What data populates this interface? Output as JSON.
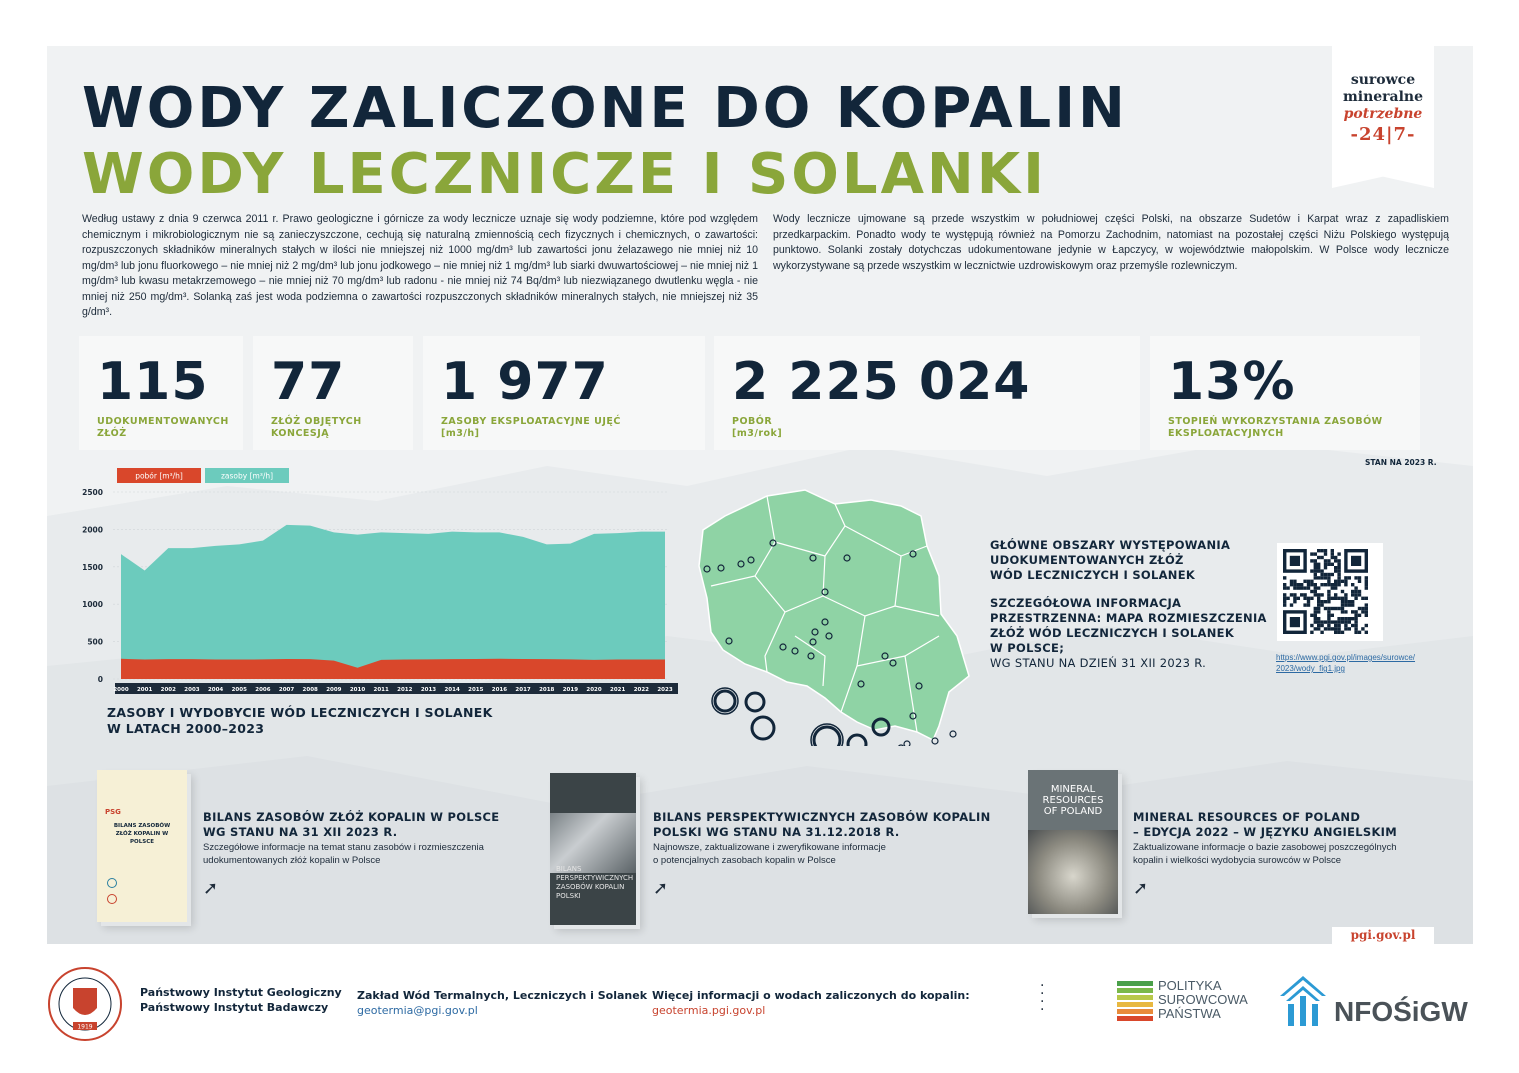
{
  "title": {
    "line1": "WODY ZALICZONE DO KOPALIN",
    "line2": "WODY LECZNICZE I SOLANKI"
  },
  "badge": {
    "line1": "surowce",
    "line2": "mineralne",
    "line3": "potrzebne",
    "line4": "-24|7-"
  },
  "intro": {
    "left": "Według ustawy z dnia 9 czerwca 2011 r. Prawo geologiczne i górnicze za wody lecznicze uznaje się wody podziemne, które pod względem chemicznym i mikrobiologicznym nie są zanieczyszczone, cechują się naturalną zmiennością cech fizycznych i chemicznych, o zawartości: rozpuszczonych składników mineralnych stałych w ilości nie mniejszej niż 1000 mg/dm³ lub zawartości jonu żelazawego nie mniej niż 10 mg/dm³ lub jonu fluorkowego – nie mniej niż 2 mg/dm³ lub jonu jodkowego – nie mniej niż 1 mg/dm³ lub siarki dwuwartościowej – nie mniej niż 1 mg/dm³ lub kwasu metakrzemowego – nie mniej niż 70 mg/dm³ lub radonu - nie mniej niż 74 Bq/dm³ lub niezwiązanego dwutlenku węgla - nie mniej niż 250 mg/dm³. Solanką zaś jest woda podziemna o zawartości rozpuszczonych składników mineralnych stałych, nie mniejszej niż 35 g/dm³.",
    "right": "Wody lecznicze ujmowane są przede wszystkim w południowej części Polski, na obszarze Sudetów i Karpat wraz z zapadliskiem przedkarpackim. Ponadto wody te występują również na Pomorzu Zachodnim, natomiast na pozostałej części Niżu Polskiego występują punktowo. Solanki zostały dotychczas udokumentowane jedynie w Łapczycy, w województwie małopolskim. W Polsce wody lecznicze wykorzystywane są przede wszystkim w lecznictwie uzdrowiskowym oraz przemyśle rozlewniczym."
  },
  "stats": [
    {
      "value": "115",
      "label1": "UDOKUMENTOWANYCH",
      "label2": "ZŁÓŻ"
    },
    {
      "value": "77",
      "label1": "ZŁÓŻ OBJĘTYCH",
      "label2": "KONCESJĄ"
    },
    {
      "value": "1 977",
      "label1": "ZASOBY EKSPLOATACYJNE UJĘĆ",
      "label2": "[m3/h]"
    },
    {
      "value": "2 225 024",
      "label1": "POBÓR",
      "label2": "[m3/rok]"
    },
    {
      "value": "13%",
      "label1": "STOPIEŃ WYKORZYSTANIA ZASOBÓW",
      "label2": "EKSPLOATACYJNYCH"
    }
  ],
  "stand_note": "STAN NA 2023 R.",
  "chart_data": {
    "type": "area",
    "title": "ZASOBY I WYDOBYCIE WÓD LECZNICZYCH I SOLANEK W LATACH 2000–2023",
    "title_line1": "ZASOBY I WYDOBYCIE WÓD LECZNICZYCH I SOLANEK",
    "title_line2": "W LATACH 2000–2023",
    "legend": [
      "pobór [m³/h]",
      "zasoby [m³/h]"
    ],
    "legend_colors": [
      "#d9472b",
      "#6ccbbd"
    ],
    "x": [
      "2000",
      "2001",
      "2002",
      "2003",
      "2004",
      "2005",
      "2006",
      "2007",
      "2008",
      "2009",
      "2010",
      "2011",
      "2012",
      "2013",
      "2014",
      "2015",
      "2016",
      "2017",
      "2018",
      "2019",
      "2020",
      "2021",
      "2022",
      "2023"
    ],
    "series": [
      {
        "name": "pobór [m³/h]",
        "values": [
          270,
          260,
          265,
          265,
          260,
          260,
          262,
          268,
          265,
          245,
          150,
          255,
          260,
          262,
          265,
          268,
          270,
          268,
          265,
          262,
          255,
          260,
          260,
          260
        ]
      },
      {
        "name": "zasoby [m³/h]",
        "values": [
          1670,
          1450,
          1750,
          1750,
          1780,
          1800,
          1850,
          2060,
          2050,
          1960,
          1930,
          1960,
          1950,
          1940,
          1970,
          1960,
          1960,
          1900,
          1800,
          1810,
          1940,
          1950,
          1970,
          1970
        ]
      }
    ],
    "yticks": [
      "0",
      "500",
      "1000",
      "1500",
      "2000",
      "2500"
    ],
    "ylim": [
      0,
      2500
    ]
  },
  "map": {
    "heading1": "GŁÓWNE OBSZARY WYSTĘPOWANIA UDOKUMENTOWANYCH ZŁÓŻ WÓD LECZNICZYCH I SOLANEK",
    "h1_l1": "GŁÓWNE OBSZARY WYSTĘPOWANIA",
    "h1_l2": "UDOKUMENTOWANYCH ZŁÓŻ",
    "h1_l3": "WÓD LECZNICZYCH I SOLANEK",
    "h2_l1": "SZCZEGÓŁOWA INFORMACJA",
    "h2_l2": "PRZESTRZENNA: MAPA ROZMIESZCZENIA",
    "h2_l3": "ZŁÓŻ WÓD LECZNICZYCH I SOLANEK",
    "h2_l4": "W POLSCE;",
    "h2_l5": "WG STANU NA DZIEŃ 31 XII 2023 R.",
    "link1": "https://www.pgi.gov.pl/images/surowce/",
    "link2": "2023/wody_fig1.jpg"
  },
  "publications": [
    {
      "title1": "BILANS ZASOBÓW ZŁÓŻ KOPALIN W POLSCE",
      "title2": "WG STANU NA 31 XII 2023 R.",
      "desc1": "Szczegółowe informacje na temat stanu zasobów i rozmieszczenia",
      "desc2": "udokumentowanych złóż kopalin w Polsce",
      "cover1": "BILANS ZASOBÓW",
      "cover2": "ZŁÓŻ KOPALIN W POLSCE",
      "cover_logo": "PSG"
    },
    {
      "title1": "BILANS PERSPEKTYWICZNYCH ZASOBÓW KOPALIN",
      "title2": "POLSKI WG STANU NA 31.12.2018 R.",
      "desc1": "Najnowsze, zaktualizowane i zweryfikowane informacje",
      "desc2": "o potencjalnych zasobach kopalin w Polsce",
      "cover1": "BILANS",
      "cover2": "PERSPEKTYWICZNYCH ZASOBÓW KOPALIN POLSKI"
    },
    {
      "title1": "MINERAL RESOURCES OF POLAND",
      "title2": "– EDYCJA 2022 – W JĘZYKU ANGIELSKIM",
      "desc1": "Zaktualizowane informacje o bazie zasobowej poszczególnych",
      "desc2": "kopalin i wielkości wydobycia surowców w Polsce",
      "cover1": "MINERAL",
      "cover2": "RESOURCES",
      "cover3": "OF POLAND"
    }
  ],
  "pgi_tab": "pgi.gov.pl",
  "footer": {
    "inst1": "Państwowy Instytut Geologiczny",
    "inst2": "Państwowy Instytut Badawczy",
    "dept": "Zakład Wód Termalnych, Leczniczych i Solanek",
    "dept_mail": "geotermia@pgi.gov.pl",
    "more": "Więcej informacji o wodach zaliczonych do kopalin:",
    "more_link": "geotermia.pgi.gov.pl",
    "psp1": "POLITYKA",
    "psp2": "SUROWCOWA",
    "psp3": "PAŃSTWA",
    "nfos": "NFOŚiGW",
    "seal_year": "1919"
  }
}
